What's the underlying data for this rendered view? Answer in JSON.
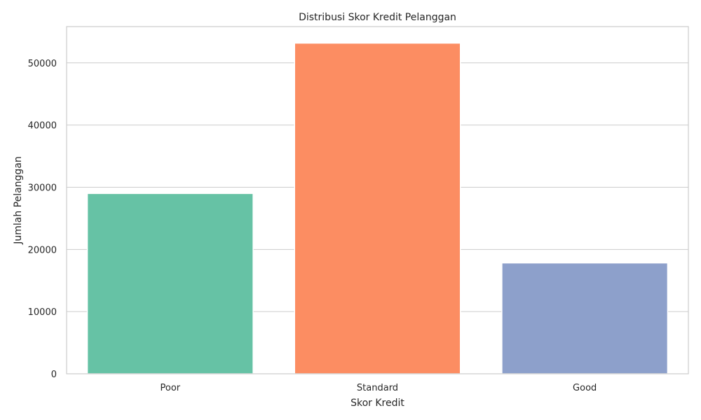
{
  "chart_data": {
    "type": "bar",
    "title": "Distribusi Skor Kredit Pelanggan",
    "xlabel": "Skor Kredit",
    "ylabel": "Jumlah Pelanggan",
    "categories": [
      "Poor",
      "Standard",
      "Good"
    ],
    "values": [
      28998,
      53174,
      17828
    ],
    "colors": [
      "#66c2a5",
      "#fc8d62",
      "#8da0cb"
    ],
    "ylim": [
      0,
      55830
    ],
    "yticks": [
      0,
      10000,
      20000,
      30000,
      40000,
      50000
    ],
    "ytick_labels": [
      "0",
      "10000",
      "20000",
      "30000",
      "40000",
      "50000"
    ],
    "grid": "horizontal",
    "legend": "none"
  }
}
